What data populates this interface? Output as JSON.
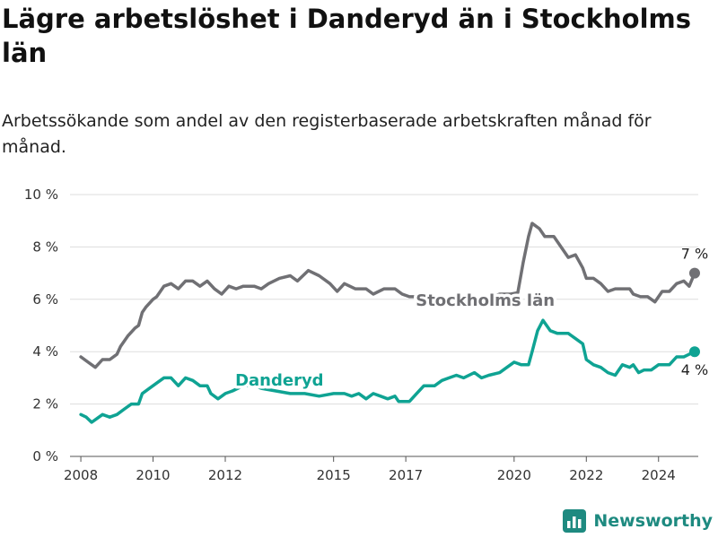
{
  "header": {
    "title": "Lägre arbetslöshet i Danderyd än i Stockholms län",
    "subtitle": "Arbetssökande som andel av den registerbaserade arbetskraften månad för månad."
  },
  "brand": {
    "name": "Newsworthy"
  },
  "colors": {
    "stockholm": "#707074",
    "danderyd": "#0fa393",
    "grid": "#dddddd",
    "axis": "#333333"
  },
  "chart_data": {
    "type": "line",
    "title": "Lägre arbetslöshet i Danderyd än i Stockholms län",
    "ylim": [
      0,
      10
    ],
    "xlim": [
      2007.7,
      2025.1
    ],
    "y_ticks": [
      {
        "value": 0,
        "label": "0 %"
      },
      {
        "value": 2,
        "label": "2 %"
      },
      {
        "value": 4,
        "label": "4 %"
      },
      {
        "value": 6,
        "label": "6 %"
      },
      {
        "value": 8,
        "label": "8 %"
      },
      {
        "value": 10,
        "label": "10 %"
      }
    ],
    "x_ticks": [
      {
        "value": 2008,
        "label": "2008"
      },
      {
        "value": 2010,
        "label": "2010"
      },
      {
        "value": 2012,
        "label": "2012"
      },
      {
        "value": 2015,
        "label": "2015"
      },
      {
        "value": 2017,
        "label": "2017"
      },
      {
        "value": 2020,
        "label": "2020"
      },
      {
        "value": 2022,
        "label": "2022"
      },
      {
        "value": 2024,
        "label": "2024"
      }
    ],
    "series": [
      {
        "name": "Stockholms län",
        "color": "#707074",
        "end_label": "7 %",
        "points": [
          [
            2008.0,
            3.8
          ],
          [
            2008.2,
            3.6
          ],
          [
            2008.4,
            3.4
          ],
          [
            2008.6,
            3.7
          ],
          [
            2008.8,
            3.7
          ],
          [
            2009.0,
            3.9
          ],
          [
            2009.1,
            4.2
          ],
          [
            2009.3,
            4.6
          ],
          [
            2009.5,
            4.9
          ],
          [
            2009.6,
            5.0
          ],
          [
            2009.7,
            5.5
          ],
          [
            2009.8,
            5.7
          ],
          [
            2010.0,
            6.0
          ],
          [
            2010.1,
            6.1
          ],
          [
            2010.3,
            6.5
          ],
          [
            2010.5,
            6.6
          ],
          [
            2010.7,
            6.4
          ],
          [
            2010.9,
            6.7
          ],
          [
            2011.1,
            6.7
          ],
          [
            2011.3,
            6.5
          ],
          [
            2011.5,
            6.7
          ],
          [
            2011.7,
            6.4
          ],
          [
            2011.9,
            6.2
          ],
          [
            2012.1,
            6.5
          ],
          [
            2012.3,
            6.4
          ],
          [
            2012.5,
            6.5
          ],
          [
            2012.8,
            6.5
          ],
          [
            2013.0,
            6.4
          ],
          [
            2013.2,
            6.6
          ],
          [
            2013.5,
            6.8
          ],
          [
            2013.8,
            6.9
          ],
          [
            2014.0,
            6.7
          ],
          [
            2014.3,
            7.1
          ],
          [
            2014.6,
            6.9
          ],
          [
            2014.9,
            6.6
          ],
          [
            2015.1,
            6.3
          ],
          [
            2015.3,
            6.6
          ],
          [
            2015.6,
            6.4
          ],
          [
            2015.9,
            6.4
          ],
          [
            2016.1,
            6.2
          ],
          [
            2016.4,
            6.4
          ],
          [
            2016.7,
            6.4
          ],
          [
            2016.9,
            6.2
          ],
          [
            2017.1,
            6.1
          ],
          [
            2017.3,
            6.1
          ],
          [
            2017.6,
            6.1
          ],
          [
            2017.8,
            6.05
          ],
          [
            2018.1,
            6.0
          ],
          [
            2018.4,
            6.05
          ],
          [
            2018.7,
            6.1
          ],
          [
            2019.0,
            6.0
          ],
          [
            2019.3,
            6.05
          ],
          [
            2019.6,
            6.2
          ],
          [
            2019.9,
            6.2
          ],
          [
            2020.1,
            6.25
          ],
          [
            2020.25,
            7.4
          ],
          [
            2020.4,
            8.4
          ],
          [
            2020.5,
            8.9
          ],
          [
            2020.7,
            8.7
          ],
          [
            2020.85,
            8.4
          ],
          [
            2021.1,
            8.4
          ],
          [
            2021.3,
            8.0
          ],
          [
            2021.5,
            7.6
          ],
          [
            2021.7,
            7.7
          ],
          [
            2021.9,
            7.2
          ],
          [
            2022.0,
            6.8
          ],
          [
            2022.2,
            6.8
          ],
          [
            2022.4,
            6.6
          ],
          [
            2022.6,
            6.3
          ],
          [
            2022.8,
            6.4
          ],
          [
            2023.0,
            6.4
          ],
          [
            2023.2,
            6.4
          ],
          [
            2023.3,
            6.2
          ],
          [
            2023.5,
            6.1
          ],
          [
            2023.7,
            6.1
          ],
          [
            2023.9,
            5.9
          ],
          [
            2024.1,
            6.3
          ],
          [
            2024.3,
            6.3
          ],
          [
            2024.5,
            6.6
          ],
          [
            2024.7,
            6.7
          ],
          [
            2024.85,
            6.5
          ],
          [
            2025.0,
            7.0
          ]
        ]
      },
      {
        "name": "Danderyd",
        "color": "#0fa393",
        "end_label": "4 %",
        "points": [
          [
            2008.0,
            1.6
          ],
          [
            2008.15,
            1.5
          ],
          [
            2008.3,
            1.3
          ],
          [
            2008.5,
            1.5
          ],
          [
            2008.6,
            1.6
          ],
          [
            2008.8,
            1.5
          ],
          [
            2009.0,
            1.6
          ],
          [
            2009.2,
            1.8
          ],
          [
            2009.4,
            2.0
          ],
          [
            2009.6,
            2.0
          ],
          [
            2009.7,
            2.4
          ],
          [
            2009.9,
            2.6
          ],
          [
            2010.1,
            2.8
          ],
          [
            2010.3,
            3.0
          ],
          [
            2010.5,
            3.0
          ],
          [
            2010.7,
            2.7
          ],
          [
            2010.9,
            3.0
          ],
          [
            2011.1,
            2.9
          ],
          [
            2011.3,
            2.7
          ],
          [
            2011.5,
            2.7
          ],
          [
            2011.6,
            2.4
          ],
          [
            2011.8,
            2.2
          ],
          [
            2012.0,
            2.4
          ],
          [
            2012.2,
            2.5
          ],
          [
            2012.5,
            2.7
          ],
          [
            2012.8,
            2.7
          ],
          [
            2013.0,
            2.6
          ],
          [
            2013.4,
            2.5
          ],
          [
            2013.8,
            2.4
          ],
          [
            2014.2,
            2.4
          ],
          [
            2014.6,
            2.3
          ],
          [
            2015.0,
            2.4
          ],
          [
            2015.3,
            2.4
          ],
          [
            2015.5,
            2.3
          ],
          [
            2015.7,
            2.4
          ],
          [
            2015.9,
            2.2
          ],
          [
            2016.1,
            2.4
          ],
          [
            2016.3,
            2.3
          ],
          [
            2016.5,
            2.2
          ],
          [
            2016.7,
            2.3
          ],
          [
            2016.8,
            2.1
          ],
          [
            2017.1,
            2.1
          ],
          [
            2017.3,
            2.4
          ],
          [
            2017.5,
            2.7
          ],
          [
            2017.8,
            2.7
          ],
          [
            2018.0,
            2.9
          ],
          [
            2018.2,
            3.0
          ],
          [
            2018.4,
            3.1
          ],
          [
            2018.6,
            3.0
          ],
          [
            2018.9,
            3.2
          ],
          [
            2019.1,
            3.0
          ],
          [
            2019.3,
            3.1
          ],
          [
            2019.6,
            3.2
          ],
          [
            2019.8,
            3.4
          ],
          [
            2020.0,
            3.6
          ],
          [
            2020.2,
            3.5
          ],
          [
            2020.4,
            3.5
          ],
          [
            2020.5,
            4.0
          ],
          [
            2020.65,
            4.8
          ],
          [
            2020.8,
            5.2
          ],
          [
            2021.0,
            4.8
          ],
          [
            2021.2,
            4.7
          ],
          [
            2021.5,
            4.7
          ],
          [
            2021.7,
            4.5
          ],
          [
            2021.9,
            4.3
          ],
          [
            2022.0,
            3.7
          ],
          [
            2022.2,
            3.5
          ],
          [
            2022.4,
            3.4
          ],
          [
            2022.6,
            3.2
          ],
          [
            2022.8,
            3.1
          ],
          [
            2023.0,
            3.5
          ],
          [
            2023.2,
            3.4
          ],
          [
            2023.3,
            3.5
          ],
          [
            2023.45,
            3.2
          ],
          [
            2023.6,
            3.3
          ],
          [
            2023.8,
            3.3
          ],
          [
            2024.0,
            3.5
          ],
          [
            2024.3,
            3.5
          ],
          [
            2024.5,
            3.8
          ],
          [
            2024.7,
            3.8
          ],
          [
            2024.85,
            3.9
          ],
          [
            2025.0,
            4.0
          ]
        ]
      }
    ]
  }
}
